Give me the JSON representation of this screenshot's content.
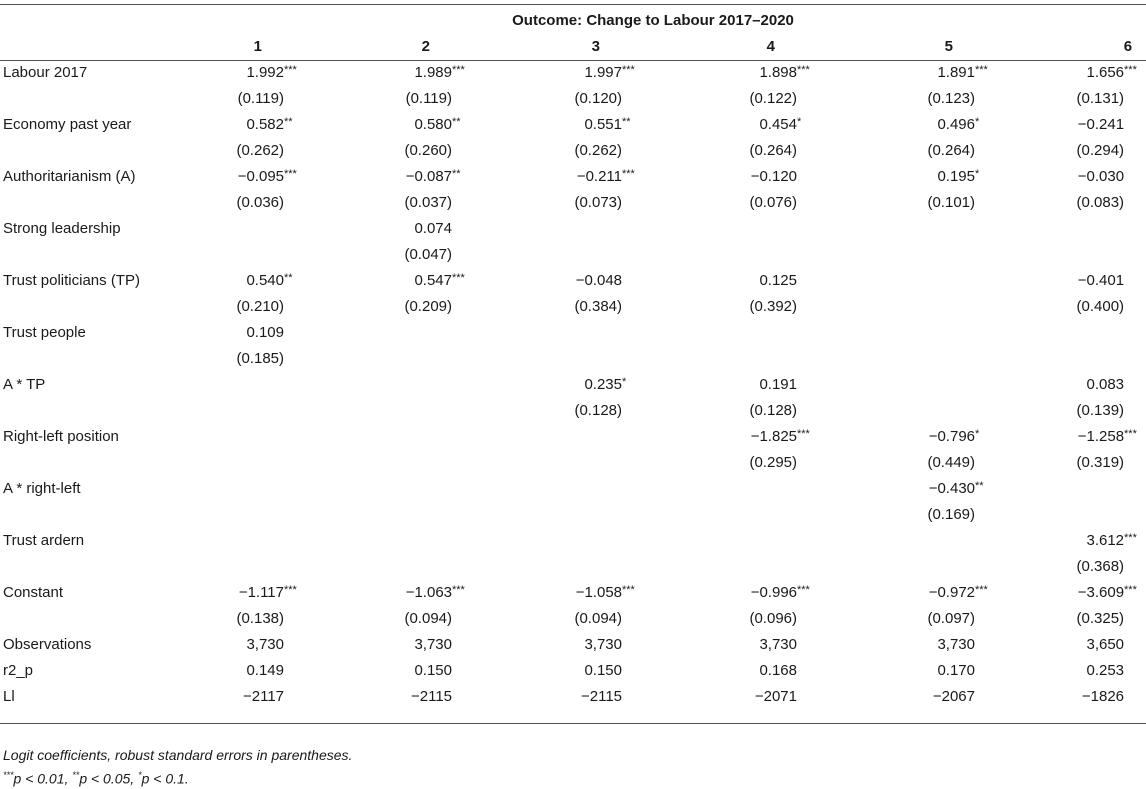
{
  "header": {
    "outcome": "Outcome: Change to Labour 2017–2020",
    "columns": [
      "1",
      "2",
      "3",
      "4",
      "5",
      "6"
    ]
  },
  "rows": [
    {
      "label": "Labour 2017",
      "cells": [
        [
          "1.992",
          "***"
        ],
        [
          "1.989",
          "***"
        ],
        [
          "1.997",
          "***"
        ],
        [
          "1.898",
          "***"
        ],
        [
          "1.891",
          "***"
        ],
        [
          "1.656",
          "***"
        ]
      ]
    },
    {
      "label": "",
      "cells": [
        [
          "(0.119)",
          ""
        ],
        [
          "(0.119)",
          ""
        ],
        [
          "(0.120)",
          ""
        ],
        [
          "(0.122)",
          ""
        ],
        [
          "(0.123)",
          ""
        ],
        [
          "(0.131)",
          ""
        ]
      ]
    },
    {
      "label": "Economy past year",
      "cells": [
        [
          "0.582",
          "**"
        ],
        [
          "0.580",
          "**"
        ],
        [
          "0.551",
          "**"
        ],
        [
          "0.454",
          "*"
        ],
        [
          "0.496",
          "*"
        ],
        [
          "−0.241",
          ""
        ]
      ]
    },
    {
      "label": "",
      "cells": [
        [
          "(0.262)",
          ""
        ],
        [
          "(0.260)",
          ""
        ],
        [
          "(0.262)",
          ""
        ],
        [
          "(0.264)",
          ""
        ],
        [
          "(0.264)",
          ""
        ],
        [
          "(0.294)",
          ""
        ]
      ]
    },
    {
      "label": "Authoritarianism (A)",
      "cells": [
        [
          "−0.095",
          "***"
        ],
        [
          "−0.087",
          "**"
        ],
        [
          "−0.211",
          "***"
        ],
        [
          "−0.120",
          ""
        ],
        [
          "0.195",
          "*"
        ],
        [
          "−0.030",
          ""
        ]
      ]
    },
    {
      "label": "",
      "cells": [
        [
          "(0.036)",
          ""
        ],
        [
          "(0.037)",
          ""
        ],
        [
          "(0.073)",
          ""
        ],
        [
          "(0.076)",
          ""
        ],
        [
          "(0.101)",
          ""
        ],
        [
          "(0.083)",
          ""
        ]
      ]
    },
    {
      "label": "Strong leadership",
      "cells": [
        [
          "",
          ""
        ],
        [
          "0.074",
          ""
        ],
        [
          "",
          ""
        ],
        [
          "",
          ""
        ],
        [
          "",
          ""
        ],
        [
          "",
          ""
        ]
      ]
    },
    {
      "label": "",
      "cells": [
        [
          "",
          ""
        ],
        [
          "(0.047)",
          ""
        ],
        [
          "",
          ""
        ],
        [
          "",
          ""
        ],
        [
          "",
          ""
        ],
        [
          "",
          ""
        ]
      ]
    },
    {
      "label": "Trust politicians (TP)",
      "cells": [
        [
          "0.540",
          "**"
        ],
        [
          "0.547",
          "***"
        ],
        [
          "−0.048",
          ""
        ],
        [
          "0.125",
          ""
        ],
        [
          "",
          ""
        ],
        [
          "−0.401",
          ""
        ]
      ]
    },
    {
      "label": "",
      "cells": [
        [
          "(0.210)",
          ""
        ],
        [
          "(0.209)",
          ""
        ],
        [
          "(0.384)",
          ""
        ],
        [
          "(0.392)",
          ""
        ],
        [
          "",
          ""
        ],
        [
          "(0.400)",
          ""
        ]
      ]
    },
    {
      "label": "Trust people",
      "cells": [
        [
          "0.109",
          ""
        ],
        [
          "",
          ""
        ],
        [
          "",
          ""
        ],
        [
          "",
          ""
        ],
        [
          "",
          ""
        ],
        [
          "",
          ""
        ]
      ]
    },
    {
      "label": "",
      "cells": [
        [
          "(0.185)",
          ""
        ],
        [
          "",
          ""
        ],
        [
          "",
          ""
        ],
        [
          "",
          ""
        ],
        [
          "",
          ""
        ],
        [
          "",
          ""
        ]
      ]
    },
    {
      "label": "A * TP",
      "cells": [
        [
          "",
          ""
        ],
        [
          "",
          ""
        ],
        [
          "0.235",
          "*"
        ],
        [
          "0.191",
          ""
        ],
        [
          "",
          ""
        ],
        [
          "0.083",
          ""
        ]
      ]
    },
    {
      "label": "",
      "cells": [
        [
          "",
          ""
        ],
        [
          "",
          ""
        ],
        [
          "(0.128)",
          ""
        ],
        [
          "(0.128)",
          ""
        ],
        [
          "",
          ""
        ],
        [
          "(0.139)",
          ""
        ]
      ]
    },
    {
      "label": "Right-left position",
      "cells": [
        [
          "",
          ""
        ],
        [
          "",
          ""
        ],
        [
          "",
          ""
        ],
        [
          "−1.825",
          "***"
        ],
        [
          "−0.796",
          "*"
        ],
        [
          "−1.258",
          "***"
        ]
      ]
    },
    {
      "label": "",
      "cells": [
        [
          "",
          ""
        ],
        [
          "",
          ""
        ],
        [
          "",
          ""
        ],
        [
          "(0.295)",
          ""
        ],
        [
          "(0.449)",
          ""
        ],
        [
          "(0.319)",
          ""
        ]
      ]
    },
    {
      "label": "A * right-left",
      "cells": [
        [
          "",
          ""
        ],
        [
          "",
          ""
        ],
        [
          "",
          ""
        ],
        [
          "",
          ""
        ],
        [
          "−0.430",
          "**"
        ],
        [
          "",
          ""
        ]
      ]
    },
    {
      "label": "",
      "cells": [
        [
          "",
          ""
        ],
        [
          "",
          ""
        ],
        [
          "",
          ""
        ],
        [
          "",
          ""
        ],
        [
          "(0.169)",
          ""
        ],
        [
          "",
          ""
        ]
      ]
    },
    {
      "label": "Trust ardern",
      "cells": [
        [
          "",
          ""
        ],
        [
          "",
          ""
        ],
        [
          "",
          ""
        ],
        [
          "",
          ""
        ],
        [
          "",
          ""
        ],
        [
          "3.612",
          "***"
        ]
      ]
    },
    {
      "label": "",
      "cells": [
        [
          "",
          ""
        ],
        [
          "",
          ""
        ],
        [
          "",
          ""
        ],
        [
          "",
          ""
        ],
        [
          "",
          ""
        ],
        [
          "(0.368)",
          ""
        ]
      ]
    },
    {
      "label": "Constant",
      "cells": [
        [
          "−1.117",
          "***"
        ],
        [
          "−1.063",
          "***"
        ],
        [
          "−1.058",
          "***"
        ],
        [
          "−0.996",
          "***"
        ],
        [
          "−0.972",
          "***"
        ],
        [
          "−3.609",
          "***"
        ]
      ]
    },
    {
      "label": "",
      "cells": [
        [
          "(0.138)",
          ""
        ],
        [
          "(0.094)",
          ""
        ],
        [
          "(0.094)",
          ""
        ],
        [
          "(0.096)",
          ""
        ],
        [
          "(0.097)",
          ""
        ],
        [
          "(0.325)",
          ""
        ]
      ]
    },
    {
      "label": "Observations",
      "cells": [
        [
          "3,730",
          ""
        ],
        [
          "3,730",
          ""
        ],
        [
          "3,730",
          ""
        ],
        [
          "3,730",
          ""
        ],
        [
          "3,730",
          ""
        ],
        [
          "3,650",
          ""
        ]
      ]
    },
    {
      "label": "r2_p",
      "cells": [
        [
          "0.149",
          ""
        ],
        [
          "0.150",
          ""
        ],
        [
          "0.150",
          ""
        ],
        [
          "0.168",
          ""
        ],
        [
          "0.170",
          ""
        ],
        [
          "0.253",
          ""
        ]
      ]
    },
    {
      "label": "Ll",
      "cells": [
        [
          "−2117",
          ""
        ],
        [
          "−2115",
          ""
        ],
        [
          "−2115",
          ""
        ],
        [
          "−2071",
          ""
        ],
        [
          "−2067",
          ""
        ],
        [
          "−1826",
          ""
        ]
      ]
    }
  ],
  "notes": {
    "line1": "Logit coefficients, robust standard errors in parentheses.",
    "p1": "***",
    "p1_text": "p < 0.01, ",
    "p2": "**",
    "p2_text": "p < 0.05, ",
    "p3": "*",
    "p3_text": "p < 0.1."
  }
}
